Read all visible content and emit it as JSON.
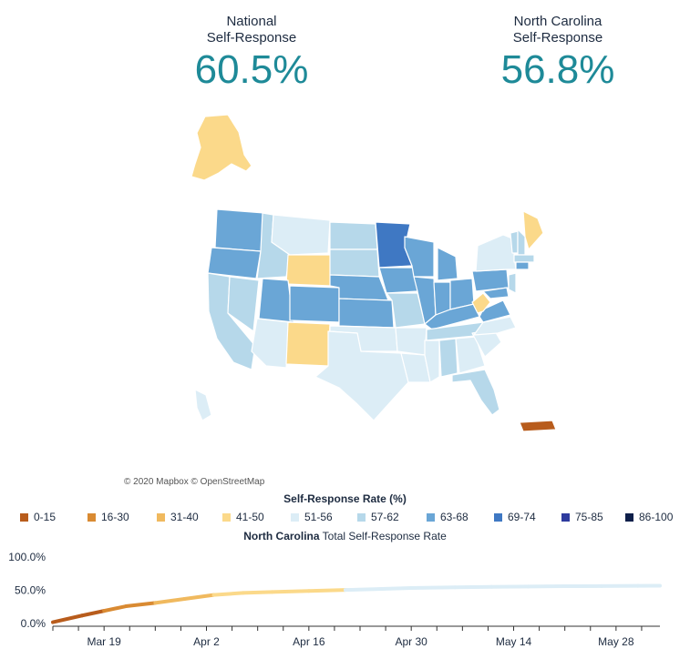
{
  "stats": {
    "national": {
      "label_line1": "National",
      "label_line2": "Self-Response",
      "value": "60.5%"
    },
    "north_carolina": {
      "label_line1": "North Carolina",
      "label_line2": "Self-Response",
      "value": "56.8%"
    }
  },
  "map": {
    "attribution": "© 2020 Mapbox © OpenStreetMap",
    "regions": [
      {
        "name": "Alaska",
        "bin": "41-50",
        "color": "#fbd98a"
      },
      {
        "name": "Washington",
        "bin": "63-68",
        "color": "#6aa6d6"
      },
      {
        "name": "Oregon",
        "bin": "63-68",
        "color": "#6aa6d6"
      },
      {
        "name": "California",
        "bin": "57-62",
        "color": "#b6d8ea"
      },
      {
        "name": "Nevada",
        "bin": "57-62",
        "color": "#b6d8ea"
      },
      {
        "name": "Idaho",
        "bin": "57-62",
        "color": "#b6d8ea"
      },
      {
        "name": "Montana",
        "bin": "51-56",
        "color": "#dcedf6"
      },
      {
        "name": "Wyoming",
        "bin": "41-50",
        "color": "#fbd98a"
      },
      {
        "name": "Utah",
        "bin": "63-68",
        "color": "#6aa6d6"
      },
      {
        "name": "Arizona",
        "bin": "51-56",
        "color": "#dcedf6"
      },
      {
        "name": "Colorado",
        "bin": "63-68",
        "color": "#6aa6d6"
      },
      {
        "name": "New Mexico",
        "bin": "41-50",
        "color": "#fbd98a"
      },
      {
        "name": "North Dakota",
        "bin": "57-62",
        "color": "#b6d8ea"
      },
      {
        "name": "South Dakota",
        "bin": "57-62",
        "color": "#b6d8ea"
      },
      {
        "name": "Nebraska",
        "bin": "63-68",
        "color": "#6aa6d6"
      },
      {
        "name": "Kansas",
        "bin": "63-68",
        "color": "#6aa6d6"
      },
      {
        "name": "Oklahoma",
        "bin": "51-56",
        "color": "#dcedf6"
      },
      {
        "name": "Texas",
        "bin": "51-56",
        "color": "#dcedf6"
      },
      {
        "name": "Minnesota",
        "bin": "69-74",
        "color": "#3f78c3"
      },
      {
        "name": "Iowa",
        "bin": "63-68",
        "color": "#6aa6d6"
      },
      {
        "name": "Missouri",
        "bin": "57-62",
        "color": "#b6d8ea"
      },
      {
        "name": "Arkansas",
        "bin": "51-56",
        "color": "#dcedf6"
      },
      {
        "name": "Louisiana",
        "bin": "51-56",
        "color": "#dcedf6"
      },
      {
        "name": "Wisconsin",
        "bin": "63-68",
        "color": "#6aa6d6"
      },
      {
        "name": "Illinois",
        "bin": "63-68",
        "color": "#6aa6d6"
      },
      {
        "name": "Michigan",
        "bin": "63-68",
        "color": "#6aa6d6"
      },
      {
        "name": "Indiana",
        "bin": "63-68",
        "color": "#6aa6d6"
      },
      {
        "name": "Ohio",
        "bin": "63-68",
        "color": "#6aa6d6"
      },
      {
        "name": "Kentucky",
        "bin": "63-68",
        "color": "#6aa6d6"
      },
      {
        "name": "Tennessee",
        "bin": "57-62",
        "color": "#b6d8ea"
      },
      {
        "name": "Mississippi",
        "bin": "51-56",
        "color": "#dcedf6"
      },
      {
        "name": "Alabama",
        "bin": "57-62",
        "color": "#b6d8ea"
      },
      {
        "name": "Georgia",
        "bin": "51-56",
        "color": "#dcedf6"
      },
      {
        "name": "Florida",
        "bin": "57-62",
        "color": "#b6d8ea"
      },
      {
        "name": "South Carolina",
        "bin": "51-56",
        "color": "#dcedf6"
      },
      {
        "name": "North Carolina",
        "bin": "51-56",
        "color": "#dcedf6"
      },
      {
        "name": "Virginia",
        "bin": "63-68",
        "color": "#6aa6d6"
      },
      {
        "name": "West Virginia",
        "bin": "41-50",
        "color": "#fbd98a"
      },
      {
        "name": "Pennsylvania",
        "bin": "63-68",
        "color": "#6aa6d6"
      },
      {
        "name": "New York",
        "bin": "51-56",
        "color": "#dcedf6"
      },
      {
        "name": "Vermont",
        "bin": "57-62",
        "color": "#b6d8ea"
      },
      {
        "name": "New Hampshire",
        "bin": "57-62",
        "color": "#b6d8ea"
      },
      {
        "name": "Maine",
        "bin": "41-50",
        "color": "#fbd98a"
      },
      {
        "name": "Massachusetts",
        "bin": "57-62",
        "color": "#b6d8ea"
      },
      {
        "name": "Connecticut",
        "bin": "63-68",
        "color": "#6aa6d6"
      },
      {
        "name": "New Jersey",
        "bin": "57-62",
        "color": "#b6d8ea"
      },
      {
        "name": "Maryland",
        "bin": "63-68",
        "color": "#6aa6d6"
      },
      {
        "name": "Hawaii",
        "bin": "51-56",
        "color": "#dcedf6"
      },
      {
        "name": "Puerto Rico",
        "bin": "0-15",
        "color": "#b85c1c"
      }
    ]
  },
  "legend": {
    "title": "Self-Response Rate (%)",
    "items": [
      {
        "label": "0-15",
        "color": "#b85c1c"
      },
      {
        "label": "16-30",
        "color": "#d98a32"
      },
      {
        "label": "31-40",
        "color": "#f0b95e"
      },
      {
        "label": "41-50",
        "color": "#fbd98a"
      },
      {
        "label": "51-56",
        "color": "#dcedf6"
      },
      {
        "label": "57-62",
        "color": "#b6d8ea"
      },
      {
        "label": "63-68",
        "color": "#6aa6d6"
      },
      {
        "label": "69-74",
        "color": "#3f78c3"
      },
      {
        "label": "75-85",
        "color": "#2e3b9e"
      },
      {
        "label": "86-100",
        "color": "#0e1f4a"
      }
    ]
  },
  "chart_title": {
    "bold": "North Carolina",
    "rest": " Total Self-Response Rate"
  },
  "chart_data": {
    "type": "line",
    "title": "North Carolina Total Self-Response Rate",
    "xlabel": "",
    "ylabel": "",
    "ylim": [
      0,
      100
    ],
    "y_ticks": [
      "0.0%",
      "50.0%",
      "100.0%"
    ],
    "x_tick_labels": [
      "Mar 19",
      "Apr 2",
      "Apr 16",
      "Apr 30",
      "May 14",
      "May 28"
    ],
    "x_tick_days": [
      7,
      21,
      35,
      49,
      63,
      77
    ],
    "x_range_days": [
      0,
      83
    ],
    "series": [
      {
        "name": "North Carolina",
        "day": [
          0,
          4,
          7,
          10,
          14,
          18,
          22,
          26,
          30,
          35,
          40,
          45,
          49,
          55,
          60,
          65,
          70,
          75,
          80,
          83
        ],
        "value": [
          2,
          12,
          19,
          26,
          31,
          37,
          43,
          46,
          47.5,
          49,
          50.5,
          52,
          53.5,
          54.5,
          55.2,
          55.7,
          56.1,
          56.4,
          56.6,
          56.8
        ]
      }
    ]
  }
}
